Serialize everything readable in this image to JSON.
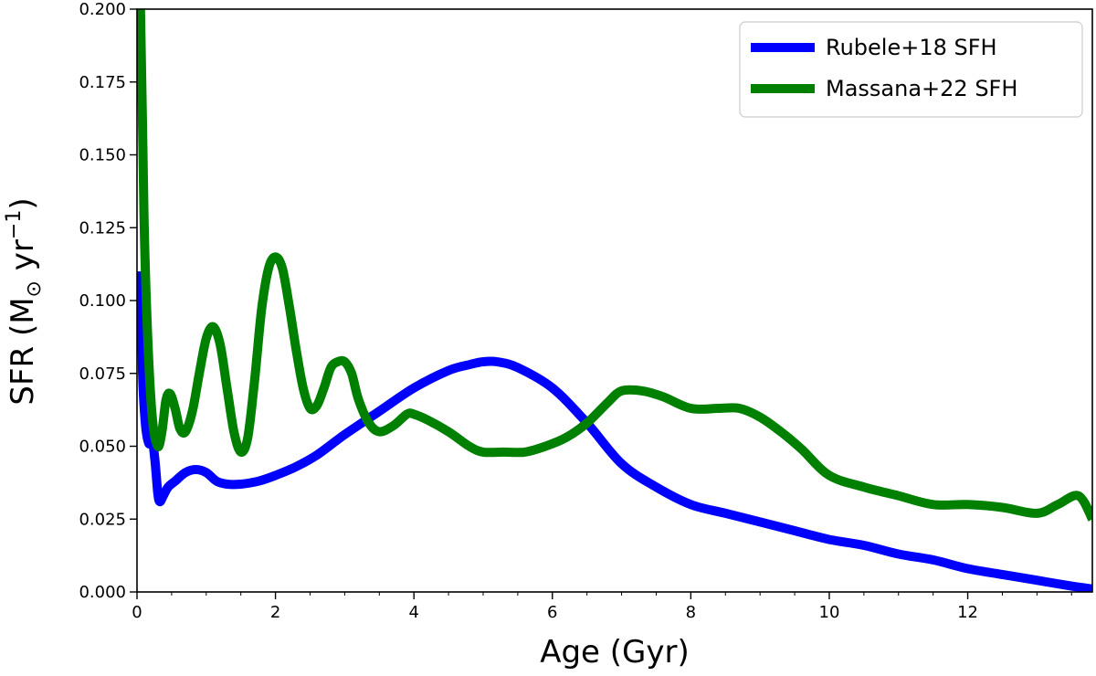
{
  "chart_data": {
    "type": "line",
    "xlabel": "Age (Gyr)",
    "ylabel_main": "SFR (M",
    "ylabel_sub": "⊙",
    "ylabel_mid": " yr",
    "ylabel_sup": "−1",
    "ylabel_end": ")",
    "xlim": [
      0,
      13.8
    ],
    "ylim": [
      0,
      0.2
    ],
    "xticks": [
      0,
      2,
      4,
      6,
      8,
      10,
      12
    ],
    "xtick_labels": [
      "0",
      "2",
      "4",
      "6",
      "8",
      "10",
      "12"
    ],
    "xticks_minor": [
      0.5,
      1,
      1.5,
      2.5,
      3,
      3.5,
      4.5,
      5,
      5.5,
      6.5,
      7,
      7.5,
      8.5,
      9,
      9.5,
      10.5,
      11,
      11.5,
      12.5,
      13,
      13.5
    ],
    "yticks": [
      0,
      0.025,
      0.05,
      0.075,
      0.1,
      0.125,
      0.15,
      0.175,
      0.2
    ],
    "ytick_labels": [
      "0.000",
      "0.025",
      "0.050",
      "0.075",
      "0.100",
      "0.125",
      "0.150",
      "0.175",
      "0.200"
    ],
    "grid": false,
    "legend_position": "top-right",
    "series": [
      {
        "name": "Rubele+18 SFH",
        "color": "#0000ff",
        "x": [
          0.05,
          0.08,
          0.12,
          0.17,
          0.22,
          0.26,
          0.3,
          0.33,
          0.38,
          0.45,
          0.55,
          0.7,
          0.85,
          1.0,
          1.15,
          1.3,
          1.5,
          1.75,
          2.0,
          2.3,
          2.6,
          3.0,
          3.5,
          4.0,
          4.5,
          4.8,
          5.0,
          5.2,
          5.5,
          6.0,
          6.5,
          7.0,
          7.5,
          8.0,
          8.5,
          9.0,
          9.5,
          10.0,
          10.5,
          11.0,
          11.5,
          12.0,
          12.5,
          13.0,
          13.5,
          13.8
        ],
        "y": [
          0.11,
          0.075,
          0.058,
          0.051,
          0.052,
          0.045,
          0.034,
          0.031,
          0.033,
          0.036,
          0.038,
          0.041,
          0.042,
          0.041,
          0.038,
          0.037,
          0.037,
          0.038,
          0.04,
          0.043,
          0.047,
          0.054,
          0.062,
          0.07,
          0.076,
          0.078,
          0.079,
          0.079,
          0.077,
          0.07,
          0.058,
          0.044,
          0.036,
          0.03,
          0.027,
          0.024,
          0.021,
          0.018,
          0.016,
          0.013,
          0.011,
          0.008,
          0.006,
          0.004,
          0.002,
          0.001
        ]
      },
      {
        "name": "Massana+22 SFH",
        "color": "#008000",
        "x": [
          0.0,
          0.05,
          0.1,
          0.15,
          0.22,
          0.3,
          0.36,
          0.42,
          0.48,
          0.55,
          0.62,
          0.7,
          0.8,
          0.9,
          1.0,
          1.1,
          1.2,
          1.3,
          1.4,
          1.5,
          1.6,
          1.7,
          1.8,
          1.9,
          2.0,
          2.1,
          2.2,
          2.3,
          2.4,
          2.5,
          2.6,
          2.7,
          2.8,
          2.9,
          3.0,
          3.1,
          3.2,
          3.35,
          3.5,
          3.7,
          3.9,
          4.0,
          4.2,
          4.5,
          4.8,
          5.0,
          5.3,
          5.6,
          5.9,
          6.2,
          6.5,
          6.8,
          7.0,
          7.3,
          7.6,
          8.0,
          8.4,
          8.7,
          9.0,
          9.3,
          9.6,
          10.0,
          10.5,
          11.0,
          11.5,
          12.0,
          12.5,
          13.0,
          13.3,
          13.6,
          13.8
        ],
        "y": [
          0.2,
          0.2,
          0.13,
          0.09,
          0.06,
          0.05,
          0.055,
          0.066,
          0.068,
          0.063,
          0.056,
          0.055,
          0.062,
          0.075,
          0.087,
          0.091,
          0.085,
          0.07,
          0.055,
          0.048,
          0.053,
          0.073,
          0.097,
          0.111,
          0.115,
          0.111,
          0.098,
          0.083,
          0.07,
          0.063,
          0.064,
          0.07,
          0.077,
          0.079,
          0.079,
          0.075,
          0.066,
          0.058,
          0.055,
          0.057,
          0.061,
          0.061,
          0.059,
          0.055,
          0.05,
          0.048,
          0.048,
          0.048,
          0.05,
          0.053,
          0.058,
          0.065,
          0.069,
          0.069,
          0.067,
          0.063,
          0.063,
          0.063,
          0.06,
          0.055,
          0.049,
          0.04,
          0.036,
          0.033,
          0.03,
          0.03,
          0.029,
          0.027,
          0.03,
          0.033,
          0.025
        ]
      }
    ]
  }
}
